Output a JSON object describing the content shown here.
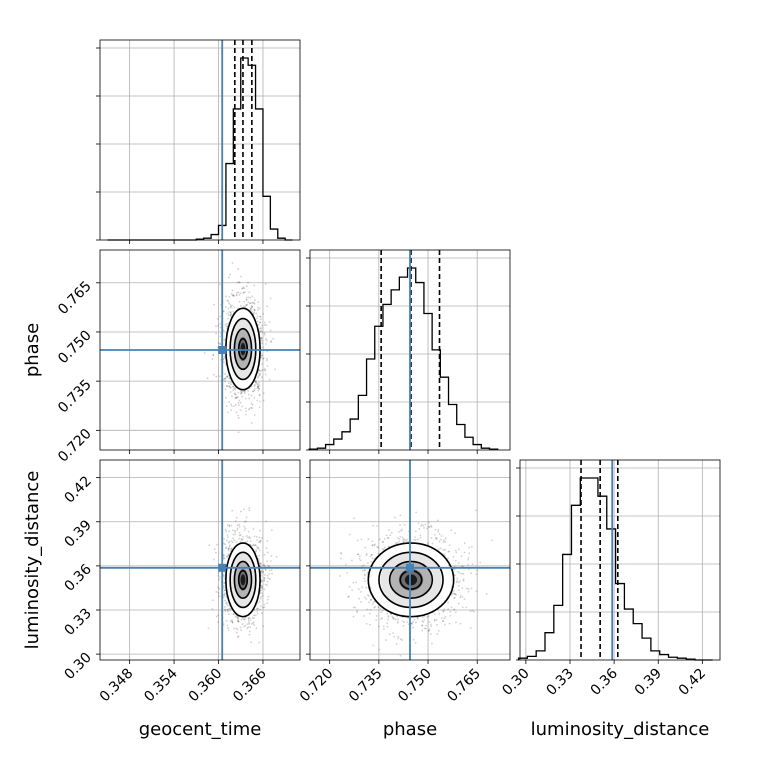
{
  "colors": {
    "truth": "#4682b4",
    "line": "#000000",
    "grid": "#b0b0b0"
  },
  "chart_data": {
    "type": "corner",
    "title": "",
    "parameters": [
      {
        "name": "geocent_time",
        "label": "geocent_time",
        "range": [
          0.344,
          0.371
        ],
        "ticks": [
          "0.348",
          "0.354",
          "0.360",
          "0.366"
        ],
        "tick_values": [
          0.348,
          0.354,
          0.36,
          0.366
        ],
        "truth": 0.3605,
        "quantiles": [
          0.3622,
          0.3633,
          0.3645
        ],
        "hist": {
          "bins": [
            0.3455,
            0.3465,
            0.3475,
            0.3485,
            0.3495,
            0.3505,
            0.3515,
            0.3525,
            0.3535,
            0.3545,
            0.3555,
            0.3565,
            0.3575,
            0.3585,
            0.3595,
            0.3605,
            0.3615,
            0.3625,
            0.3635,
            0.3645,
            0.3655,
            0.3665,
            0.3675,
            0.3685,
            0.3695
          ],
          "counts": [
            0,
            0,
            0,
            0,
            0,
            0,
            0,
            0,
            0,
            0,
            0,
            0,
            0.005,
            0.01,
            0.03,
            0.08,
            0.42,
            0.72,
            1.0,
            0.96,
            0.72,
            0.24,
            0.06,
            0.01,
            0
          ]
        }
      },
      {
        "name": "phase",
        "label": "phase",
        "range": [
          0.714,
          0.775
        ],
        "ticks": [
          "0.720",
          "0.735",
          "0.750",
          "0.765"
        ],
        "tick_values": [
          0.72,
          0.735,
          0.75,
          0.765
        ],
        "truth": 0.7445,
        "quantiles": [
          0.7357,
          0.7448,
          0.7535
        ],
        "hist": {
          "bins": [
            0.715,
            0.7175,
            0.72,
            0.7225,
            0.725,
            0.7275,
            0.73,
            0.7325,
            0.735,
            0.7375,
            0.74,
            0.7425,
            0.745,
            0.7475,
            0.75,
            0.7525,
            0.755,
            0.7575,
            0.76,
            0.7625,
            0.765,
            0.7675,
            0.77
          ],
          "counts": [
            0.005,
            0.01,
            0.03,
            0.06,
            0.1,
            0.17,
            0.3,
            0.5,
            0.68,
            0.8,
            0.88,
            0.95,
            1.0,
            0.92,
            0.75,
            0.55,
            0.4,
            0.25,
            0.14,
            0.07,
            0.03,
            0.01,
            0.005
          ]
        }
      },
      {
        "name": "luminosity_distance",
        "label": "luminosity_distance",
        "range": [
          0.296,
          0.432
        ],
        "ticks": [
          "0.30",
          "0.33",
          "0.36",
          "0.39",
          "0.42"
        ],
        "tick_values": [
          0.3,
          0.33,
          0.36,
          0.39,
          0.42
        ],
        "truth": 0.3587,
        "quantiles": [
          0.3375,
          0.3505,
          0.3625
        ],
        "hist": {
          "bins": [
            0.298,
            0.304,
            0.31,
            0.316,
            0.322,
            0.328,
            0.334,
            0.34,
            0.346,
            0.352,
            0.358,
            0.364,
            0.37,
            0.376,
            0.382,
            0.388,
            0.394,
            0.4,
            0.406,
            0.412,
            0.418,
            0.424
          ],
          "counts": [
            0.01,
            0.02,
            0.05,
            0.15,
            0.3,
            0.58,
            0.85,
            1.0,
            1.0,
            0.9,
            0.72,
            0.42,
            0.28,
            0.2,
            0.12,
            0.05,
            0.03,
            0.015,
            0.01,
            0.005,
            0,
            0
          ]
        }
      }
    ],
    "pairs": [
      {
        "x": "geocent_time",
        "y": "phase",
        "center": [
          0.3633,
          0.7448
        ],
        "sigma": [
          0.0011,
          0.0062
        ],
        "truth": [
          0.3605,
          0.7445
        ]
      },
      {
        "x": "geocent_time",
        "y": "luminosity_distance",
        "center": [
          0.3633,
          0.3505
        ],
        "sigma": [
          0.0011,
          0.0125
        ],
        "truth": [
          0.3605,
          0.3587
        ]
      },
      {
        "x": "phase",
        "y": "luminosity_distance",
        "center": [
          0.7448,
          0.3505
        ],
        "sigma": [
          0.0062,
          0.0125
        ],
        "truth": [
          0.7445,
          0.3587
        ]
      }
    ],
    "contour_levels_sigma": [
      0.5,
      1.0,
      1.5,
      2.0
    ],
    "grid": true
  }
}
